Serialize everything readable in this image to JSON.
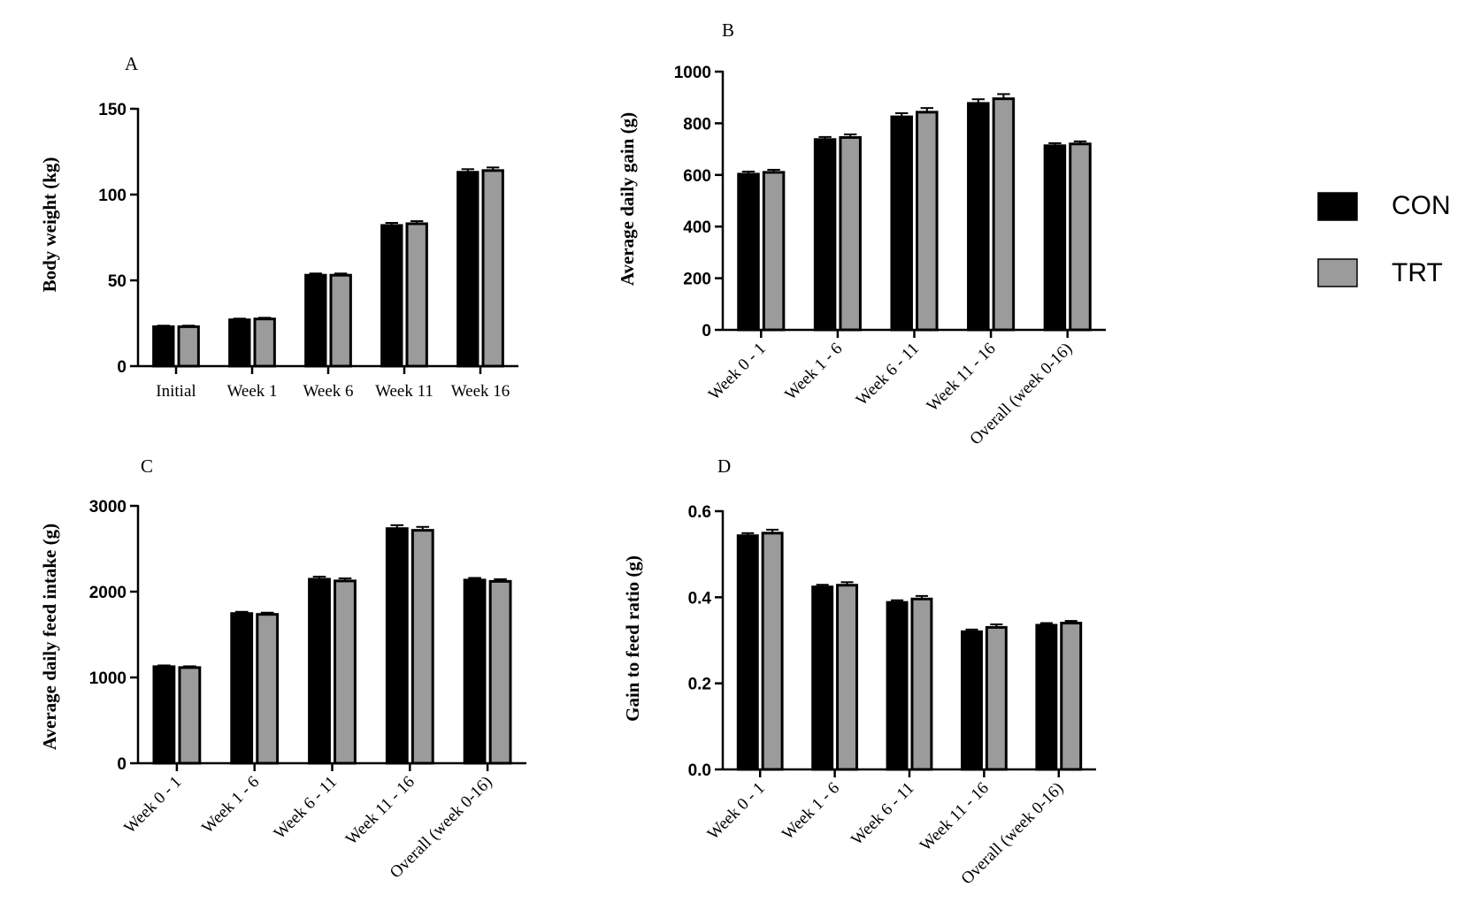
{
  "colors": {
    "CON": "#000000",
    "TRT": "#9b9b9b",
    "axis": "#000000"
  },
  "legend": [
    {
      "name": "CON",
      "color": "#000000"
    },
    {
      "name": "TRT",
      "color": "#9b9b9b"
    }
  ],
  "chart_data": [
    {
      "panel": "A",
      "type": "bar",
      "ylabel": "Body weight (kg)",
      "ylim": [
        0,
        150
      ],
      "yticks": [
        0,
        50,
        100,
        150
      ],
      "xtick_rotation": "none",
      "categories": [
        "Initial",
        "Week 1",
        "Week 6",
        "Week 11",
        "Week 16"
      ],
      "series": [
        {
          "name": "CON",
          "values": [
            23,
            27,
            53,
            82,
            113
          ],
          "errors": [
            0.6,
            0.7,
            1.0,
            1.5,
            1.8
          ]
        },
        {
          "name": "TRT",
          "values": [
            23,
            27.5,
            53,
            83,
            114
          ],
          "errors": [
            0.6,
            0.7,
            1.0,
            1.5,
            1.8
          ]
        }
      ]
    },
    {
      "panel": "B",
      "type": "bar",
      "ylabel": "Average daily gain (g)",
      "ylim": [
        0,
        1000
      ],
      "yticks": [
        0,
        200,
        400,
        600,
        800,
        1000
      ],
      "xtick_rotation": "rotated",
      "categories": [
        "Week 0 - 1",
        "Week 1 - 6",
        "Week 6 - 11",
        "Week 11 - 16",
        "Overall (week 0-16)"
      ],
      "series": [
        {
          "name": "CON",
          "values": [
            603,
            737,
            825,
            877,
            713
          ],
          "errors": [
            10,
            10,
            14,
            16,
            10
          ]
        },
        {
          "name": "TRT",
          "values": [
            610,
            745,
            843,
            895,
            720
          ],
          "errors": [
            10,
            12,
            16,
            18,
            10
          ]
        }
      ]
    },
    {
      "panel": "C",
      "type": "bar",
      "ylabel": "Average daily feed intake (g)",
      "ylim": [
        0,
        3000
      ],
      "yticks": [
        0,
        1000,
        2000,
        3000
      ],
      "xtick_rotation": "rotated",
      "categories": [
        "Week 0 - 1",
        "Week 1 - 6",
        "Week 6 - 11",
        "Week 11 - 16",
        "Overall (week 0-16)"
      ],
      "series": [
        {
          "name": "CON",
          "values": [
            1125,
            1745,
            2145,
            2735,
            2135
          ],
          "errors": [
            15,
            20,
            30,
            40,
            25
          ]
        },
        {
          "name": "TRT",
          "values": [
            1115,
            1735,
            2125,
            2715,
            2120
          ],
          "errors": [
            15,
            20,
            30,
            40,
            25
          ]
        }
      ]
    },
    {
      "panel": "D",
      "type": "bar",
      "ylabel": "Gain to feed ratio (g)",
      "ylim": [
        0,
        0.6
      ],
      "yticks": [
        "0.0",
        "0.2",
        "0.4",
        "0.6"
      ],
      "xtick_rotation": "rotated",
      "categories": [
        "Week 0 - 1",
        "Week 1 - 6",
        "Week 6 - 11",
        "Week 11 - 16",
        "Overall (week 0-16)"
      ],
      "series": [
        {
          "name": "CON",
          "values": [
            0.543,
            0.424,
            0.388,
            0.32,
            0.335
          ],
          "errors": [
            0.006,
            0.005,
            0.005,
            0.005,
            0.005
          ]
        },
        {
          "name": "TRT",
          "values": [
            0.549,
            0.428,
            0.396,
            0.33,
            0.34
          ],
          "errors": [
            0.008,
            0.007,
            0.007,
            0.007,
            0.005
          ]
        }
      ]
    }
  ]
}
